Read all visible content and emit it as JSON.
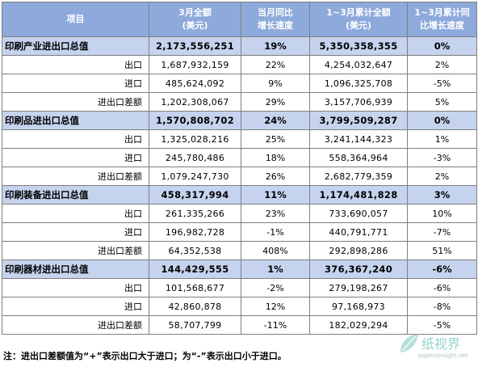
{
  "header": {
    "col1": "项目",
    "col2_line1": "3月全额",
    "col2_line2": "(美元)",
    "col3_line1": "当月同比",
    "col3_line2": "增长速度",
    "col4_line1": "1~3月累计全额",
    "col4_line2": "(美元)",
    "col5_line1": "1~3月累计同",
    "col5_line2": "比增长速度"
  },
  "groups": [
    {
      "label": "印刷产业进出口总值",
      "march": "2,173,556,251",
      "march_growth": "19%",
      "ytd": "5,350,358,355",
      "ytd_growth": "0%",
      "rows": [
        {
          "label": "出口",
          "march": "1,687,932,159",
          "march_growth": "22%",
          "ytd": "4,254,032,647",
          "ytd_growth": "2%"
        },
        {
          "label": "进口",
          "march": "485,624,092",
          "march_growth": "9%",
          "ytd": "1,096,325,708",
          "ytd_growth": "-5%"
        },
        {
          "label": "进出口差额",
          "march": "1,202,308,067",
          "march_growth": "29%",
          "ytd": "3,157,706,939",
          "ytd_growth": "5%"
        }
      ]
    },
    {
      "label": "印刷品进出口总值",
      "march": "1,570,808,702",
      "march_growth": "24%",
      "ytd": "3,799,509,287",
      "ytd_growth": "0%",
      "rows": [
        {
          "label": "出口",
          "march": "1,325,028,216",
          "march_growth": "25%",
          "ytd": "3,241,144,323",
          "ytd_growth": "1%"
        },
        {
          "label": "进口",
          "march": "245,780,486",
          "march_growth": "18%",
          "ytd": "558,364,964",
          "ytd_growth": "-3%"
        },
        {
          "label": "进出口差额",
          "march": "1,079,247,730",
          "march_growth": "26%",
          "ytd": "2,682,779,359",
          "ytd_growth": "2%"
        }
      ]
    },
    {
      "label": "印刷装备进出口总值",
      "march": "458,317,994",
      "march_growth": "11%",
      "ytd": "1,174,481,828",
      "ytd_growth": "3%",
      "rows": [
        {
          "label": "出口",
          "march": "261,335,266",
          "march_growth": "23%",
          "ytd": "733,690,057",
          "ytd_growth": "10%"
        },
        {
          "label": "进口",
          "march": "196,982,728",
          "march_growth": "-1%",
          "ytd": "440,791,771",
          "ytd_growth": "-7%"
        },
        {
          "label": "进出口差额",
          "march": "64,352,538",
          "march_growth": "408%",
          "ytd": "292,898,286",
          "ytd_growth": "51%"
        }
      ]
    },
    {
      "label": "印刷器材进出口总值",
      "march": "144,429,555",
      "march_growth": "1%",
      "ytd": "376,367,240",
      "ytd_growth": "-6%",
      "rows": [
        {
          "label": "出口",
          "march": "101,568,677",
          "march_growth": "-2%",
          "ytd": "279,198,267",
          "ytd_growth": "-6%"
        },
        {
          "label": "进口",
          "march": "42,860,878",
          "march_growth": "12%",
          "ytd": "97,168,973",
          "ytd_growth": "-8%"
        },
        {
          "label": "进出口差额",
          "march": "58,707,799",
          "march_growth": "-11%",
          "ytd": "182,029,294",
          "ytd_growth": "-5%"
        }
      ]
    }
  ],
  "footnote": "注：进出口差额值为“+”表示出口大于进口；为“-”表示出口小于进口。",
  "watermark": {
    "text": "纸视界",
    "url": "papersinsight.net"
  }
}
